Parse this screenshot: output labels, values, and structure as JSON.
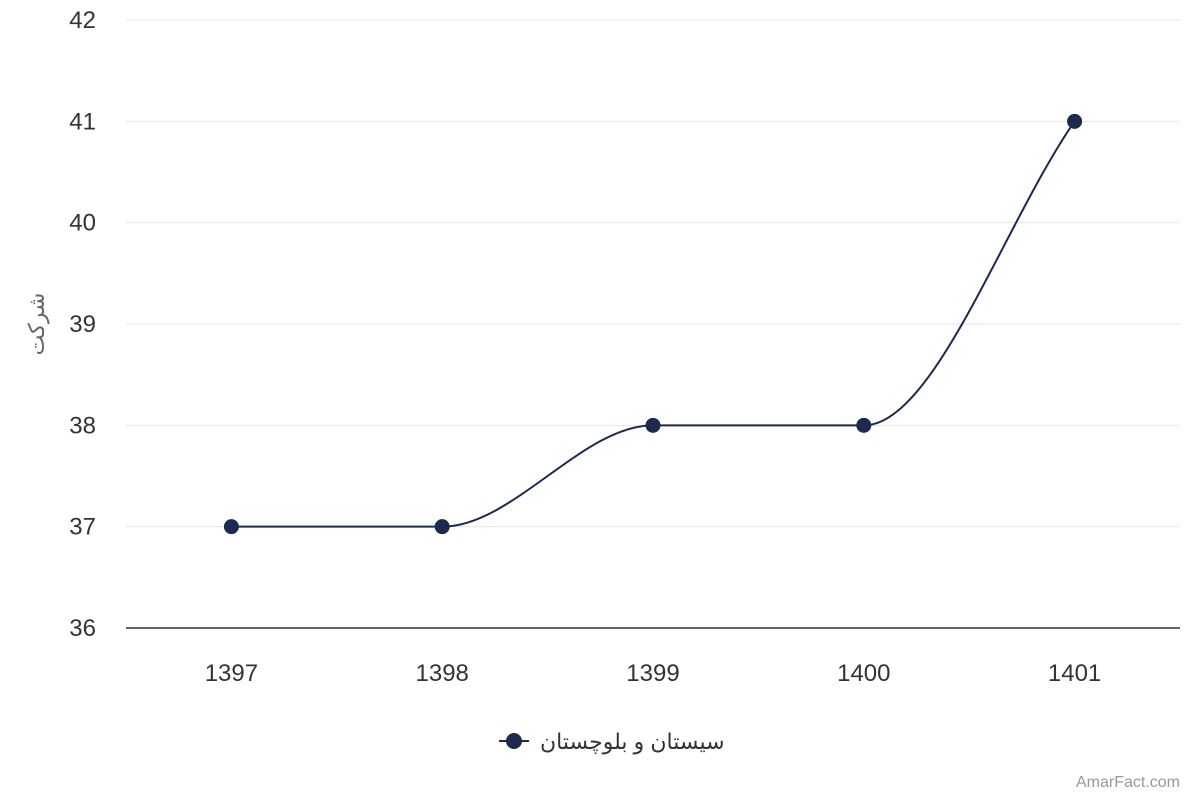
{
  "chart_data": {
    "type": "line",
    "categories": [
      "1397",
      "1398",
      "1399",
      "1400",
      "1401"
    ],
    "series": [
      {
        "name": "سیستان و بلوچستان",
        "values": [
          37,
          37,
          38,
          38,
          41
        ]
      }
    ],
    "y_ticks": [
      "36",
      "37",
      "38",
      "39",
      "40",
      "41",
      "42"
    ],
    "ylim": [
      36,
      42
    ],
    "ylabel": "شرکت",
    "xlabel": "",
    "title": "",
    "grid": true,
    "legend_position": "bottom-center",
    "line_style": "smooth",
    "colors": {
      "series": "#1b2a4d",
      "grid": "#e6e6e6",
      "axis": "#333333",
      "tick_text": "#333333",
      "axis_title": "#666666",
      "credit": "#999999"
    }
  },
  "credit": "AmarFact.com"
}
